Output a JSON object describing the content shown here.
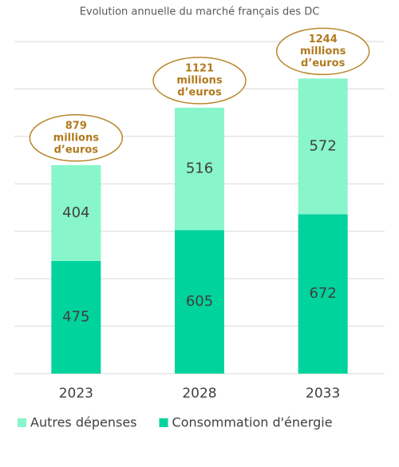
{
  "chart_data": {
    "type": "stacked_bar",
    "title": "Evolution annuelle du marché français des DC",
    "categories": [
      "2023",
      "2028",
      "2033"
    ],
    "series": [
      {
        "name": "Consommation d'énergie",
        "color": "#00d39b",
        "values": [
          475,
          605,
          672
        ]
      },
      {
        "name": "Autres dépenses",
        "color": "#88f5ca",
        "values": [
          404,
          516,
          572
        ]
      }
    ],
    "annotations": [
      {
        "lines": [
          "879",
          "millions",
          "d’euros"
        ]
      },
      {
        "lines": [
          "1121",
          "millions",
          "d’euros"
        ]
      },
      {
        "lines": [
          "1244",
          "millions",
          "d’euros"
        ]
      }
    ],
    "legend_order": [
      1,
      0
    ],
    "ylim": [
      0,
      1400
    ],
    "yticks": [
      0,
      200,
      400,
      600,
      800,
      1000,
      1200,
      1400
    ],
    "grid": true
  }
}
